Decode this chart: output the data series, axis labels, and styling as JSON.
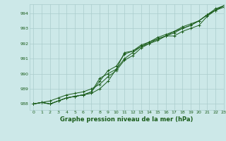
{
  "xlabel": "Graphe pression niveau de la mer (hPa)",
  "xlim": [
    -0.5,
    23
  ],
  "ylim": [
    987.6,
    994.6
  ],
  "yticks": [
    988,
    989,
    990,
    991,
    992,
    993,
    994
  ],
  "xticks": [
    0,
    1,
    2,
    3,
    4,
    5,
    6,
    7,
    8,
    9,
    10,
    11,
    12,
    13,
    14,
    15,
    16,
    17,
    18,
    19,
    20,
    21,
    22,
    23
  ],
  "bg_color": "#cce8e8",
  "grid_color": "#aacccc",
  "line_color": "#1a5c1a",
  "series": [
    [
      988.0,
      988.1,
      988.0,
      988.2,
      988.4,
      988.5,
      988.6,
      988.7,
      989.0,
      989.5,
      990.3,
      991.4,
      991.5,
      991.8,
      992.0,
      992.2,
      992.5,
      992.5,
      992.8,
      993.0,
      993.2,
      993.8,
      994.2,
      994.4
    ],
    [
      988.0,
      988.1,
      988.0,
      988.2,
      988.4,
      988.5,
      988.6,
      988.8,
      989.5,
      990.2,
      990.5,
      991.3,
      991.5,
      991.9,
      992.1,
      992.3,
      992.5,
      992.7,
      993.0,
      993.2,
      993.5,
      993.9,
      994.2,
      994.5
    ],
    [
      988.0,
      988.1,
      988.2,
      988.4,
      988.6,
      988.7,
      988.8,
      989.0,
      989.3,
      989.8,
      990.2,
      990.9,
      991.2,
      991.7,
      992.0,
      992.3,
      992.5,
      992.8,
      993.1,
      993.3,
      993.5,
      993.9,
      994.2,
      994.5
    ],
    [
      988.0,
      988.1,
      988.0,
      988.2,
      988.4,
      988.5,
      988.6,
      988.8,
      989.7,
      990.0,
      990.3,
      991.0,
      991.4,
      991.8,
      992.1,
      992.4,
      992.6,
      992.8,
      993.0,
      993.2,
      993.5,
      993.9,
      994.3,
      994.5
    ]
  ]
}
